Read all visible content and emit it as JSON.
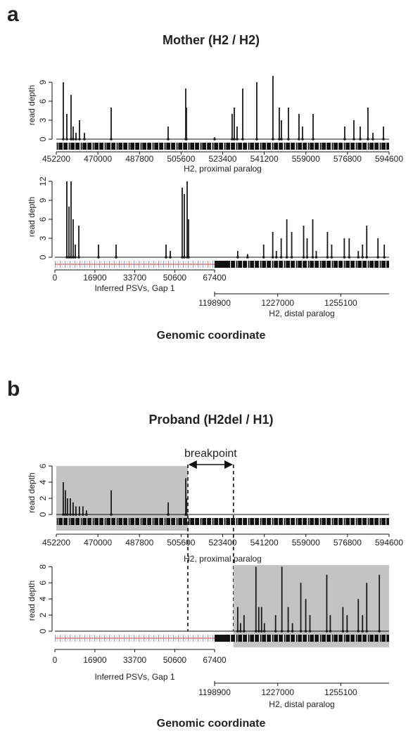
{
  "chart_data": [
    {
      "type": "bar",
      "panel_label": "a",
      "title": "Mother (H2 / H2)",
      "ylabel": "read depth",
      "ylim": [
        -2,
        11
      ],
      "yticks": [
        0,
        3,
        6,
        9
      ],
      "xlim": [
        452200,
        594600
      ],
      "xticks": [
        452200,
        470000,
        487800,
        505600,
        523400,
        541200,
        559000,
        576800,
        594600
      ],
      "xlabel": "H2, proximal paralog",
      "series": [
        {
          "color": "#1a1a1a",
          "x": [
            455210,
            456715,
            458520,
            459425,
            460630,
            462135,
            464240,
            475680,
            500060,
            507590,
            507890,
            519930,
            527460,
            528360,
            529560,
            531970,
            537990,
            544910,
            547620,
            548530,
            551540,
            556050,
            557560,
            562080,
            575620,
            579540,
            582250,
            585560,
            587670,
            592190
          ],
          "values": [
            9,
            4,
            7,
            2,
            1,
            3,
            1,
            5,
            2,
            8,
            5,
            0.3,
            4,
            5,
            2,
            8,
            9,
            10,
            5,
            3,
            5,
            4,
            2,
            4,
            2,
            3,
            2,
            5,
            1,
            2
          ]
        }
      ]
    },
    {
      "type": "bar",
      "ylabel": "read depth",
      "ylim": [
        -2,
        13
      ],
      "yticks": [
        0,
        3,
        6,
        9,
        12
      ],
      "xlim": [
        0,
        67400
      ],
      "xticks": [
        0,
        16900,
        33700,
        50600,
        67400
      ],
      "xlabel": "Inferred PSVs, Gap 1",
      "x2lim": [
        1198900,
        1276600
      ],
      "x2ticks": [
        1198900,
        1227000,
        1255100
      ],
      "x2label": "H2, distal paralog",
      "figure_xlabel": "Genomic coordinate",
      "series": [
        {
          "color": "#1a1a1a",
          "x": [
            5050,
            5940,
            6830,
            7720,
            8610,
            10100,
            18410,
            25830,
            46910,
            48690,
            53740,
            54630,
            55820,
            56410
          ],
          "values": [
            12,
            8,
            12,
            6,
            2,
            5,
            2,
            2,
            2,
            1,
            11,
            10,
            12,
            6
          ]
        },
        {
          "color": "#1a1a1a",
          "axis": "x2",
          "x": [
            1209200,
            1213600,
            1220750,
            1224800,
            1226400,
            1228560,
            1231060,
            1233240,
            1238550,
            1240100,
            1242610,
            1244170,
            1249160,
            1251040,
            1256660,
            1258840,
            1262900,
            1264780,
            1266650,
            1271650,
            1274460
          ],
          "values": [
            1,
            0.5,
            2,
            4,
            1,
            3,
            6,
            4,
            5,
            3,
            6,
            1,
            4,
            2,
            3,
            3,
            1,
            2,
            5,
            3,
            2
          ]
        }
      ]
    },
    {
      "type": "bar",
      "panel_label": "b",
      "title": "Proband (H2del / H1)",
      "ylabel": "read depth",
      "ylim": [
        -2,
        6
      ],
      "yticks": [
        0,
        2,
        4,
        6
      ],
      "xlim": [
        452200,
        594600
      ],
      "xticks": [
        452200,
        470000,
        487800,
        505600,
        523400,
        541200,
        559000,
        576800,
        594600
      ],
      "xlabel": "H2, proximal paralog",
      "shade": [
        452200,
        508500
      ],
      "shade_color": "#c3c3c3",
      "breakpoint": {
        "label": "breakpoint",
        "start": 508500,
        "end": 528000
      },
      "series": [
        {
          "color": "#1a1a1a",
          "x": [
            455200,
            456100,
            457000,
            458200,
            459400,
            460600,
            462100,
            463600,
            465100,
            475700,
            500100,
            507600,
            507900
          ],
          "values": [
            4,
            3,
            2,
            2,
            1.5,
            1,
            1,
            1,
            0.5,
            3,
            1.5,
            4.5,
            2
          ]
        }
      ]
    },
    {
      "type": "bar",
      "ylabel": "read depth",
      "ylim": [
        -2,
        8.2
      ],
      "yticks": [
        0,
        2,
        4,
        6,
        8
      ],
      "xlim": [
        0,
        67400
      ],
      "xticks": [
        0,
        16900,
        33700,
        50600,
        67400
      ],
      "xlabel": "Inferred PSVs, Gap 1",
      "x2lim": [
        1198900,
        1276600
      ],
      "x2ticks": [
        1198900,
        1227000,
        1255100
      ],
      "x2label": "H2, distal paralog",
      "shade": [
        1207300,
        1276600
      ],
      "shade_axis": "x2",
      "shade_color": "#c3c3c3",
      "figure_xlabel": "Genomic coordinate",
      "series": [
        {
          "color": "#1a1a1a",
          "axis": "x2",
          "x": [
            1209200,
            1210450,
            1212010,
            1217320,
            1218570,
            1219820,
            1221070,
            1226060,
            1228870,
            1231680,
            1233560,
            1237300,
            1239490,
            1241360,
            1248860,
            1250420,
            1256040,
            1257910,
            1262900,
            1264780,
            1266650,
            1272270
          ],
          "values": [
            3,
            1,
            2,
            8,
            3,
            3,
            1,
            2,
            8,
            3,
            1,
            6,
            4,
            2,
            7,
            2,
            3,
            2,
            4,
            2,
            6,
            7
          ]
        }
      ]
    }
  ]
}
